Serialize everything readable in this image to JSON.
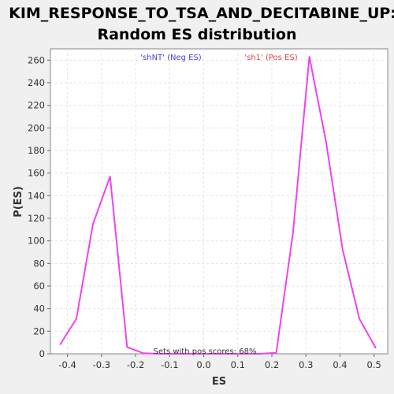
{
  "chart_data": {
    "type": "line",
    "title": [
      "KIM_RESPONSE_TO_TSA_AND_DECITABINE_UP:",
      "Random ES distribution"
    ],
    "xlabel": "ES",
    "ylabel": "P(ES)",
    "xlim": [
      -0.45,
      0.54
    ],
    "ylim": [
      0,
      270
    ],
    "x_ticks": [
      -0.4,
      -0.3,
      -0.2,
      -0.1,
      0.0,
      0.1,
      0.2,
      0.3,
      0.4,
      0.5
    ],
    "x_tick_labels": [
      "-0.4",
      "-0.3",
      "-0.2",
      "-0.1",
      "0.0",
      "0.1",
      "0.2",
      "0.3",
      "0.4",
      "0.5"
    ],
    "y_ticks": [
      0,
      20,
      40,
      60,
      80,
      100,
      120,
      140,
      160,
      180,
      200,
      220,
      240,
      260
    ],
    "y_tick_labels": [
      "0",
      "20",
      "40",
      "60",
      "80",
      "100",
      "120",
      "140",
      "160",
      "180",
      "200",
      "220",
      "240",
      "260"
    ],
    "grid": true,
    "series": [
      {
        "color": "#ee44ee",
        "x": [
          -0.422,
          -0.374,
          -0.325,
          -0.275,
          -0.225,
          -0.177,
          -0.128,
          -0.079,
          -0.03,
          0.019,
          0.068,
          0.117,
          0.166,
          0.213,
          0.262,
          0.31,
          0.359,
          0.408,
          0.457,
          0.505
        ],
        "y": [
          8,
          31,
          115,
          157,
          6,
          0.5,
          0,
          0,
          0,
          0,
          0,
          0,
          0,
          1,
          107,
          263,
          188,
          92,
          31,
          5
        ]
      }
    ],
    "annotations": {
      "neg": {
        "text": "'shNT' (Neg ES)",
        "color": "#4444dd"
      },
      "pos": {
        "text": "'sh1' (Pos ES)",
        "color": "#dd4444"
      },
      "footer": {
        "text": "Sets with pos scores: 68%",
        "color": "#333333"
      }
    }
  }
}
